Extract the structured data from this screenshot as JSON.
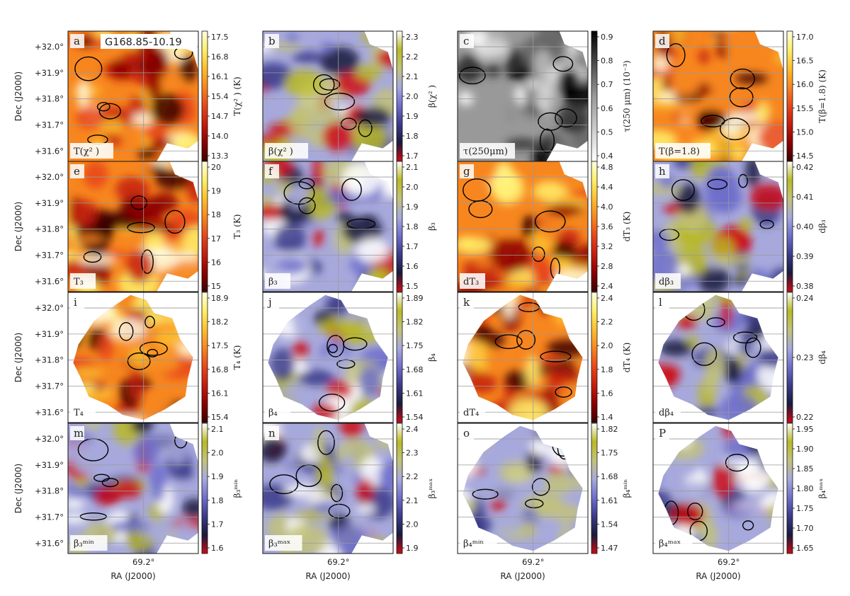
{
  "figure": {
    "region_name": "G168.85-10.19",
    "x_axis_label": "RA (J2000)",
    "y_axis_label": "Dec (J2000)",
    "x_tick_label": "69.2°",
    "y_tick_labels": [
      "+32.0°",
      "+31.9°",
      "+31.8°",
      "+31.7°",
      "+31.6°"
    ]
  },
  "colormaps": {
    "heat": [
      "#3a0000",
      "#8b0000",
      "#c41d0e",
      "#e8471a",
      "#f7861f",
      "#fdbf2d",
      "#fff06a",
      "#fffde0"
    ],
    "beta": [
      "#cc0b17",
      "#1a1a3c",
      "#3b3b8a",
      "#6e6fcb",
      "#a7a9dc",
      "#c2c27a",
      "#b9b925",
      "#ffffff"
    ],
    "grey": [
      "#ffffff",
      "#dddddd",
      "#bbbbbb",
      "#999999",
      "#666666",
      "#333333",
      "#000000"
    ]
  },
  "panels": [
    {
      "letter": "a",
      "label": "T(χ² )",
      "cbar_title": "T(χ² ) (K)",
      "cmap": "heat",
      "ticks": [
        "17.5",
        "16.8",
        "16.1",
        "15.4",
        "14.7",
        "14.0",
        "13.3"
      ],
      "shape": "full"
    },
    {
      "letter": "b",
      "label": "β(χ² )",
      "cbar_title": "β(χ² )",
      "cmap": "beta",
      "ticks": [
        "2.3",
        "2.2",
        "2.1",
        "2.0",
        "1.9",
        "1.8",
        "1.7"
      ],
      "shape": "full"
    },
    {
      "letter": "c",
      "label": "τ(250μm)",
      "cbar_title": "τ(250 μm) (10⁻³)",
      "cmap": "grey",
      "ticks": [
        "0.9",
        "0.8",
        "0.7",
        "0.6",
        "0.5",
        "0.4"
      ],
      "shape": "full"
    },
    {
      "letter": "d",
      "label": "T(β=1.8)",
      "cbar_title": "T(β=1.8) (K)",
      "cmap": "heat",
      "ticks": [
        "17.0",
        "16.5",
        "16.0",
        "15.5",
        "15.0",
        "14.5"
      ],
      "shape": "full"
    },
    {
      "letter": "e",
      "label": "T₃",
      "cbar_title": "T₃ (K)",
      "cmap": "heat",
      "ticks": [
        "20",
        "19",
        "18",
        "17",
        "16",
        "15"
      ],
      "shape": "full"
    },
    {
      "letter": "f",
      "label": "β₃",
      "cbar_title": "β₃",
      "cmap": "beta",
      "ticks": [
        "2.1",
        "2.0",
        "1.9",
        "1.8",
        "1.7",
        "1.6",
        "1.5"
      ],
      "shape": "full"
    },
    {
      "letter": "g",
      "label": "dT₃",
      "cbar_title": "dT₃ (K)",
      "cmap": "heat",
      "ticks": [
        "4.8",
        "4.4",
        "4.0",
        "3.6",
        "3.2",
        "2.8",
        "2.4"
      ],
      "shape": "full"
    },
    {
      "letter": "h",
      "label": "dβ₃",
      "cbar_title": "dβ₃",
      "cmap": "beta",
      "ticks": [
        "0.42",
        "0.41",
        "0.40",
        "0.39",
        "0.38"
      ],
      "shape": "full"
    },
    {
      "letter": "i",
      "label": "T₄",
      "cbar_title": "T₄ (K)",
      "cmap": "heat",
      "ticks": [
        "18.9",
        "18.2",
        "17.5",
        "16.8",
        "16.1",
        "15.4"
      ],
      "shape": "diamond"
    },
    {
      "letter": "j",
      "label": "β₄",
      "cbar_title": "β₄",
      "cmap": "beta",
      "ticks": [
        "1.89",
        "1.82",
        "1.75",
        "1.68",
        "1.61",
        "1.54"
      ],
      "shape": "diamond"
    },
    {
      "letter": "k",
      "label": "dT₄",
      "cbar_title": "dT₄ (K)",
      "cmap": "heat",
      "ticks": [
        "2.4",
        "2.2",
        "2.0",
        "1.8",
        "1.6",
        "1.4"
      ],
      "shape": "diamond"
    },
    {
      "letter": "l",
      "label": "dβ₄",
      "cbar_title": "dβ₄",
      "cmap": "beta",
      "ticks": [
        "0.24",
        "0.23",
        "0.22"
      ],
      "shape": "diamond"
    },
    {
      "letter": "m",
      "label": "β₃ᵐⁱⁿ",
      "cbar_title": "β₃ᵐⁱⁿ",
      "cmap": "beta",
      "ticks": [
        "2.1",
        "2.0",
        "1.9",
        "1.8",
        "1.7",
        "1.6"
      ],
      "shape": "full"
    },
    {
      "letter": "n",
      "label": "β₃ᵐᵃˣ",
      "cbar_title": "β₃ᵐᵃˣ",
      "cmap": "beta",
      "ticks": [
        "2.4",
        "2.3",
        "2.2",
        "2.1",
        "2.0",
        "1.9"
      ],
      "shape": "full"
    },
    {
      "letter": "o",
      "label": "β₄ᵐⁱⁿ",
      "cbar_title": "β₄ᵐⁱⁿ",
      "cmap": "beta",
      "ticks": [
        "1.82",
        "1.75",
        "1.68",
        "1.61",
        "1.54",
        "1.47"
      ],
      "shape": "diamond"
    },
    {
      "letter": "P",
      "label": "β₄ᵐᵃˣ",
      "cbar_title": "β₄ᵐᵃˣ",
      "cmap": "beta",
      "ticks": [
        "1.95",
        "1.90",
        "1.85",
        "1.80",
        "1.75",
        "1.70",
        "1.65"
      ],
      "shape": "diamond"
    }
  ]
}
